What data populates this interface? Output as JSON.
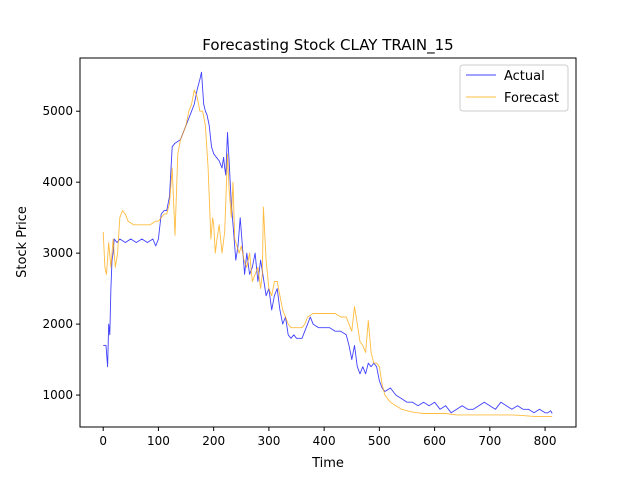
{
  "chart_data": {
    "type": "line",
    "title": "Forecasting Stock CLAY TRAIN_15",
    "xlabel": "Time",
    "ylabel": "Stock Price",
    "xlim": [
      -42,
      856
    ],
    "ylim": [
      550,
      5750
    ],
    "xticks": [
      0,
      100,
      200,
      300,
      400,
      500,
      600,
      700,
      800
    ],
    "yticks": [
      1000,
      2000,
      3000,
      4000,
      5000
    ],
    "grid": false,
    "legend_position": "top-right",
    "series": [
      {
        "name": "Actual",
        "color": "#0000ff",
        "points": [
          [
            0,
            1700
          ],
          [
            5,
            1700
          ],
          [
            8,
            1400
          ],
          [
            10,
            2000
          ],
          [
            12,
            1850
          ],
          [
            14,
            2500
          ],
          [
            16,
            2900
          ],
          [
            18,
            3000
          ],
          [
            20,
            3200
          ],
          [
            25,
            3150
          ],
          [
            30,
            3200
          ],
          [
            40,
            3150
          ],
          [
            50,
            3200
          ],
          [
            60,
            3150
          ],
          [
            70,
            3200
          ],
          [
            80,
            3150
          ],
          [
            90,
            3200
          ],
          [
            95,
            3100
          ],
          [
            100,
            3200
          ],
          [
            105,
            3550
          ],
          [
            110,
            3600
          ],
          [
            115,
            3600
          ],
          [
            120,
            3800
          ],
          [
            125,
            4500
          ],
          [
            130,
            4550
          ],
          [
            140,
            4600
          ],
          [
            150,
            4800
          ],
          [
            160,
            5000
          ],
          [
            165,
            5100
          ],
          [
            170,
            5300
          ],
          [
            175,
            5450
          ],
          [
            178,
            5550
          ],
          [
            182,
            5100
          ],
          [
            185,
            5000
          ],
          [
            188,
            4950
          ],
          [
            192,
            4800
          ],
          [
            196,
            4500
          ],
          [
            200,
            4400
          ],
          [
            205,
            4350
          ],
          [
            210,
            4300
          ],
          [
            215,
            4200
          ],
          [
            218,
            4350
          ],
          [
            220,
            4200
          ],
          [
            222,
            4100
          ],
          [
            225,
            4700
          ],
          [
            228,
            4300
          ],
          [
            232,
            3700
          ],
          [
            236,
            3300
          ],
          [
            240,
            2900
          ],
          [
            244,
            3100
          ],
          [
            248,
            3500
          ],
          [
            252,
            3100
          ],
          [
            256,
            2700
          ],
          [
            260,
            3000
          ],
          [
            265,
            2700
          ],
          [
            270,
            2800
          ],
          [
            275,
            3000
          ],
          [
            280,
            2600
          ],
          [
            285,
            2900
          ],
          [
            290,
            2650
          ],
          [
            295,
            2400
          ],
          [
            300,
            2500
          ],
          [
            305,
            2200
          ],
          [
            310,
            2400
          ],
          [
            315,
            2500
          ],
          [
            320,
            2200
          ],
          [
            325,
            2000
          ],
          [
            330,
            2100
          ],
          [
            335,
            1850
          ],
          [
            340,
            1800
          ],
          [
            345,
            1850
          ],
          [
            350,
            1800
          ],
          [
            360,
            1800
          ],
          [
            370,
            2000
          ],
          [
            375,
            2100
          ],
          [
            380,
            2000
          ],
          [
            390,
            1950
          ],
          [
            400,
            1950
          ],
          [
            410,
            1950
          ],
          [
            420,
            1900
          ],
          [
            430,
            1900
          ],
          [
            440,
            1850
          ],
          [
            445,
            1700
          ],
          [
            450,
            1500
          ],
          [
            455,
            1700
          ],
          [
            460,
            1400
          ],
          [
            465,
            1300
          ],
          [
            470,
            1400
          ],
          [
            475,
            1300
          ],
          [
            480,
            1450
          ],
          [
            485,
            1400
          ],
          [
            490,
            1450
          ],
          [
            495,
            1400
          ],
          [
            500,
            1200
          ],
          [
            505,
            1100
          ],
          [
            510,
            1050
          ],
          [
            520,
            1100
          ],
          [
            530,
            1000
          ],
          [
            540,
            950
          ],
          [
            550,
            900
          ],
          [
            560,
            900
          ],
          [
            570,
            850
          ],
          [
            580,
            900
          ],
          [
            590,
            850
          ],
          [
            600,
            900
          ],
          [
            610,
            800
          ],
          [
            620,
            850
          ],
          [
            630,
            750
          ],
          [
            640,
            800
          ],
          [
            650,
            850
          ],
          [
            660,
            800
          ],
          [
            670,
            800
          ],
          [
            680,
            850
          ],
          [
            690,
            900
          ],
          [
            700,
            850
          ],
          [
            710,
            800
          ],
          [
            720,
            900
          ],
          [
            730,
            850
          ],
          [
            740,
            800
          ],
          [
            750,
            850
          ],
          [
            760,
            800
          ],
          [
            770,
            800
          ],
          [
            780,
            750
          ],
          [
            790,
            800
          ],
          [
            800,
            750
          ],
          [
            805,
            750
          ],
          [
            810,
            780
          ],
          [
            813,
            740
          ]
        ]
      },
      {
        "name": "Forecast",
        "color": "#ffa500",
        "points": [
          [
            0,
            3300
          ],
          [
            3,
            2800
          ],
          [
            6,
            2700
          ],
          [
            10,
            3150
          ],
          [
            14,
            2800
          ],
          [
            18,
            3200
          ],
          [
            22,
            2800
          ],
          [
            26,
            3000
          ],
          [
            30,
            3500
          ],
          [
            35,
            3600
          ],
          [
            40,
            3550
          ],
          [
            45,
            3450
          ],
          [
            55,
            3400
          ],
          [
            70,
            3400
          ],
          [
            85,
            3400
          ],
          [
            95,
            3450
          ],
          [
            100,
            3450
          ],
          [
            105,
            3500
          ],
          [
            110,
            3550
          ],
          [
            115,
            3550
          ],
          [
            120,
            3700
          ],
          [
            125,
            4200
          ],
          [
            130,
            3250
          ],
          [
            135,
            4400
          ],
          [
            140,
            4600
          ],
          [
            145,
            4700
          ],
          [
            150,
            4800
          ],
          [
            155,
            5000
          ],
          [
            160,
            5100
          ],
          [
            165,
            5300
          ],
          [
            170,
            5200
          ],
          [
            175,
            5000
          ],
          [
            180,
            5000
          ],
          [
            185,
            4800
          ],
          [
            190,
            4200
          ],
          [
            195,
            3200
          ],
          [
            198,
            3500
          ],
          [
            200,
            3400
          ],
          [
            203,
            3000
          ],
          [
            206,
            3200
          ],
          [
            210,
            3400
          ],
          [
            215,
            3000
          ],
          [
            220,
            3300
          ],
          [
            225,
            4400
          ],
          [
            228,
            3900
          ],
          [
            232,
            3500
          ],
          [
            235,
            4000
          ],
          [
            238,
            3200
          ],
          [
            242,
            3100
          ],
          [
            246,
            3000
          ],
          [
            250,
            3100
          ],
          [
            255,
            2900
          ],
          [
            260,
            2800
          ],
          [
            265,
            3000
          ],
          [
            270,
            2600
          ],
          [
            275,
            2700
          ],
          [
            280,
            2800
          ],
          [
            285,
            2500
          ],
          [
            288,
            2700
          ],
          [
            290,
            3650
          ],
          [
            295,
            2900
          ],
          [
            300,
            2500
          ],
          [
            305,
            2400
          ],
          [
            310,
            2600
          ],
          [
            315,
            2600
          ],
          [
            320,
            2400
          ],
          [
            325,
            2200
          ],
          [
            330,
            2100
          ],
          [
            335,
            2000
          ],
          [
            340,
            1950
          ],
          [
            345,
            1950
          ],
          [
            350,
            1950
          ],
          [
            355,
            1950
          ],
          [
            360,
            1950
          ],
          [
            365,
            2000
          ],
          [
            370,
            2100
          ],
          [
            380,
            2150
          ],
          [
            390,
            2150
          ],
          [
            400,
            2150
          ],
          [
            410,
            2150
          ],
          [
            420,
            2150
          ],
          [
            430,
            2100
          ],
          [
            440,
            2100
          ],
          [
            445,
            2000
          ],
          [
            450,
            1900
          ],
          [
            455,
            2250
          ],
          [
            460,
            2000
          ],
          [
            465,
            1750
          ],
          [
            470,
            1700
          ],
          [
            475,
            1600
          ],
          [
            480,
            2050
          ],
          [
            485,
            1600
          ],
          [
            490,
            1450
          ],
          [
            495,
            1450
          ],
          [
            500,
            1400
          ],
          [
            505,
            1150
          ],
          [
            510,
            1000
          ],
          [
            520,
            900
          ],
          [
            530,
            850
          ],
          [
            540,
            800
          ],
          [
            550,
            780
          ],
          [
            560,
            760
          ],
          [
            570,
            750
          ],
          [
            580,
            740
          ],
          [
            590,
            740
          ],
          [
            600,
            740
          ],
          [
            620,
            740
          ],
          [
            640,
            720
          ],
          [
            660,
            720
          ],
          [
            680,
            720
          ],
          [
            700,
            720
          ],
          [
            720,
            720
          ],
          [
            740,
            720
          ],
          [
            760,
            710
          ],
          [
            780,
            700
          ],
          [
            800,
            700
          ],
          [
            813,
            700
          ]
        ]
      }
    ]
  }
}
